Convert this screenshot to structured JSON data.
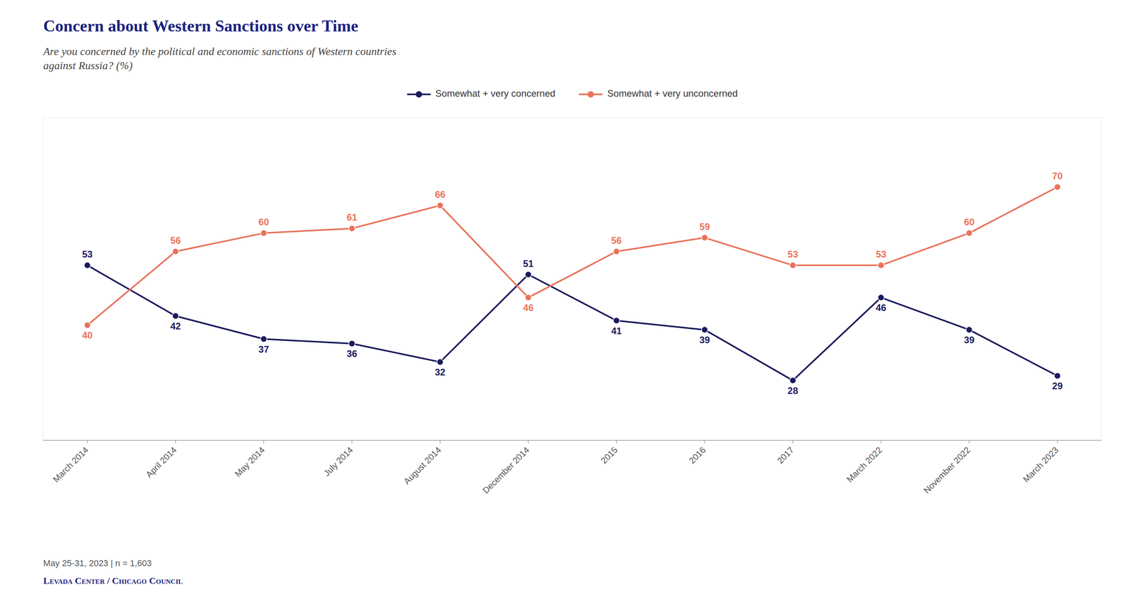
{
  "chart_data": {
    "type": "line",
    "title": "Concern about Western Sanctions over Time",
    "subtitle": [
      "Are you concerned by the political and economic sanctions of Western countries",
      "against Russia? (%)"
    ],
    "annotations": [
      "May 25-31, 2023 | n = 1,603",
      "Levada Center / Chicago Council"
    ],
    "categories": [
      "March 2014",
      "April 2014",
      "May 2014",
      "July 2014",
      "August 2014",
      "December 2014",
      "2015",
      "2016",
      "2017",
      "March 2022",
      "November 2022",
      "March 2023"
    ],
    "series": [
      {
        "name": "Somewhat + very concerned",
        "color": "#1a1a5e",
        "marker": "circle",
        "line_style": "solid",
        "values": [
          53,
          42,
          37,
          36,
          32,
          51,
          41,
          39,
          28,
          46,
          39,
          29
        ]
      },
      {
        "name": "Somewhat + very unconcerned",
        "color": "#e8735a",
        "marker": "circle",
        "line_style": "solid",
        "values": [
          40,
          56,
          60,
          61,
          66,
          46,
          56,
          59,
          53,
          53,
          60,
          70
        ]
      }
    ],
    "ylim": [
      15,
      85
    ],
    "grid": false,
    "legend": "top",
    "data_labels": true,
    "tick_labels": "x"
  }
}
